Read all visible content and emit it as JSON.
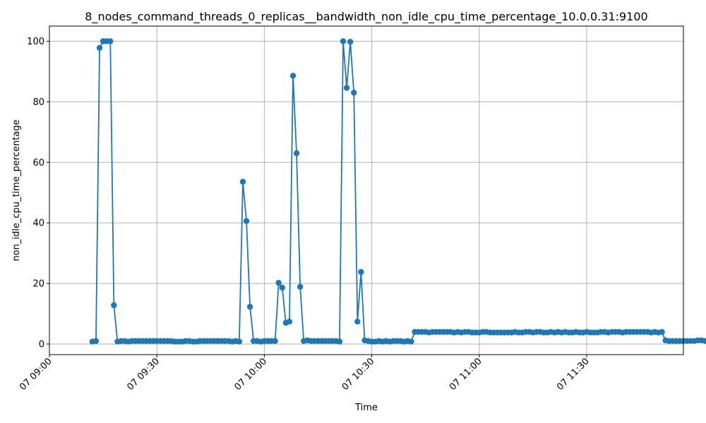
{
  "chart_data": {
    "type": "line",
    "title": "8_nodes_command_threads_0_replicas__bandwidth_non_idle_cpu_time_percentage_10.0.0.31:9100",
    "xlabel": "Time",
    "ylabel": "non_idle_cpu_time_percentage",
    "x_start": "07 08:47",
    "x_step_minutes": 1,
    "xlim": [
      "07 08:35",
      "07 11:32"
    ],
    "ylim": [
      -3.5,
      105
    ],
    "grid": true,
    "marker": "circle",
    "color": "#1f77b4",
    "x_ticks": [
      {
        "label": "07 09:00",
        "minutes": 25
      },
      {
        "label": "07 09:30",
        "minutes": 55
      },
      {
        "label": "07 10:00",
        "minutes": 85
      },
      {
        "label": "07 10:30",
        "minutes": 115
      },
      {
        "label": "07 11:00",
        "minutes": 145
      },
      {
        "label": "07 11:30",
        "minutes": 175
      }
    ],
    "y_ticks": [
      0,
      20,
      40,
      60,
      80,
      100
    ],
    "series": [
      {
        "values": [
          0.8,
          1.0,
          97.8,
          100,
          100,
          100,
          12.8,
          0.8,
          1.0,
          1.0,
          0.8,
          1.0,
          1.0,
          1.0,
          1.0,
          1.0,
          1.0,
          1.0,
          1.0,
          1.0,
          1.0,
          1.0,
          1.0,
          0.8,
          0.8,
          0.8,
          1.0,
          1.0,
          0.8,
          0.8,
          1.0,
          1.0,
          1.0,
          1.0,
          1.0,
          1.0,
          1.0,
          1.0,
          1.0,
          0.8,
          1.0,
          0.8,
          53.6,
          40.6,
          12.3,
          1.0,
          1.0,
          0.8,
          1.0,
          1.0,
          1.0,
          1.0,
          20.2,
          18.6,
          7.0,
          7.4,
          88.6,
          63.0,
          18.9,
          1.0,
          1.2,
          1.0,
          1.0,
          1.0,
          1.0,
          1.0,
          1.0,
          1.0,
          1.0,
          0.8,
          100,
          84.6,
          99.8,
          83.0,
          7.4,
          23.8,
          1.2,
          1.0,
          0.8,
          0.8,
          1.0,
          0.8,
          1.0,
          0.8,
          1.0,
          1.0,
          1.0,
          0.8,
          1.0,
          0.8,
          4.0,
          4.0,
          4.0,
          4.0,
          3.8,
          4.0,
          4.0,
          4.0,
          4.0,
          4.0,
          4.0,
          3.8,
          4.0,
          3.8,
          4.0,
          4.0,
          3.8,
          3.8,
          3.8,
          4.0,
          4.0,
          3.8,
          3.8,
          3.8,
          3.8,
          3.8,
          3.8,
          3.8,
          4.0,
          3.8,
          3.8,
          4.0,
          4.0,
          3.8,
          4.0,
          4.0,
          3.8,
          3.8,
          4.0,
          3.8,
          4.0,
          3.8,
          4.0,
          3.8,
          3.8,
          4.0,
          3.8,
          3.8,
          4.0,
          3.8,
          3.8,
          3.8,
          4.0,
          4.0,
          3.8,
          4.0,
          4.0,
          4.0,
          3.8,
          4.0,
          4.0,
          4.0,
          4.0,
          4.0,
          4.0,
          4.0,
          3.8,
          4.0,
          3.8,
          4.0,
          1.2,
          1.0,
          1.0,
          1.0,
          1.0,
          1.0,
          1.0,
          1.0,
          1.0,
          1.2,
          1.2,
          1.0
        ]
      }
    ]
  }
}
